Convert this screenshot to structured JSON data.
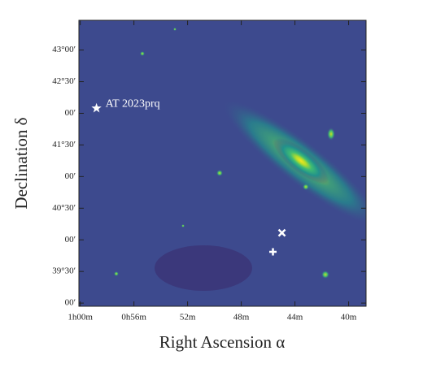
{
  "chart_data": {
    "type": "image",
    "xlabel": "Right Ascension α",
    "ylabel": "Declination δ",
    "xlim": [
      60.1,
      38.7
    ],
    "ylim": [
      38.95,
      43.47
    ],
    "xticks": [
      {
        "value": 60,
        "label": "1h00m"
      },
      {
        "value": 56,
        "label": "0h56m"
      },
      {
        "value": 52,
        "label": "52m"
      },
      {
        "value": 48,
        "label": "48m"
      },
      {
        "value": 44,
        "label": "44m"
      },
      {
        "value": 40,
        "label": "40m"
      }
    ],
    "yticks": [
      {
        "value": 43,
        "label": "43°00′"
      },
      {
        "value": 42.5,
        "label": "42°30′"
      },
      {
        "value": 42,
        "label": "00′"
      },
      {
        "value": 41.5,
        "label": "41°30′"
      },
      {
        "value": 41,
        "label": "00′"
      },
      {
        "value": 40.5,
        "label": "40°30′"
      },
      {
        "value": 40,
        "label": "00′"
      },
      {
        "value": 39.5,
        "label": "39°30′"
      },
      {
        "value": 39,
        "label": "00′"
      }
    ],
    "markers": [
      {
        "shape": "star",
        "label": "AT 2023prq",
        "x": 58.79,
        "y": 42.08,
        "color": "#ffffff"
      },
      {
        "shape": "x",
        "x": 44.97,
        "y": 40.11,
        "color": "#ffffff"
      },
      {
        "shape": "plus",
        "x": 45.64,
        "y": 39.81,
        "color": "#ffffff"
      }
    ]
  }
}
